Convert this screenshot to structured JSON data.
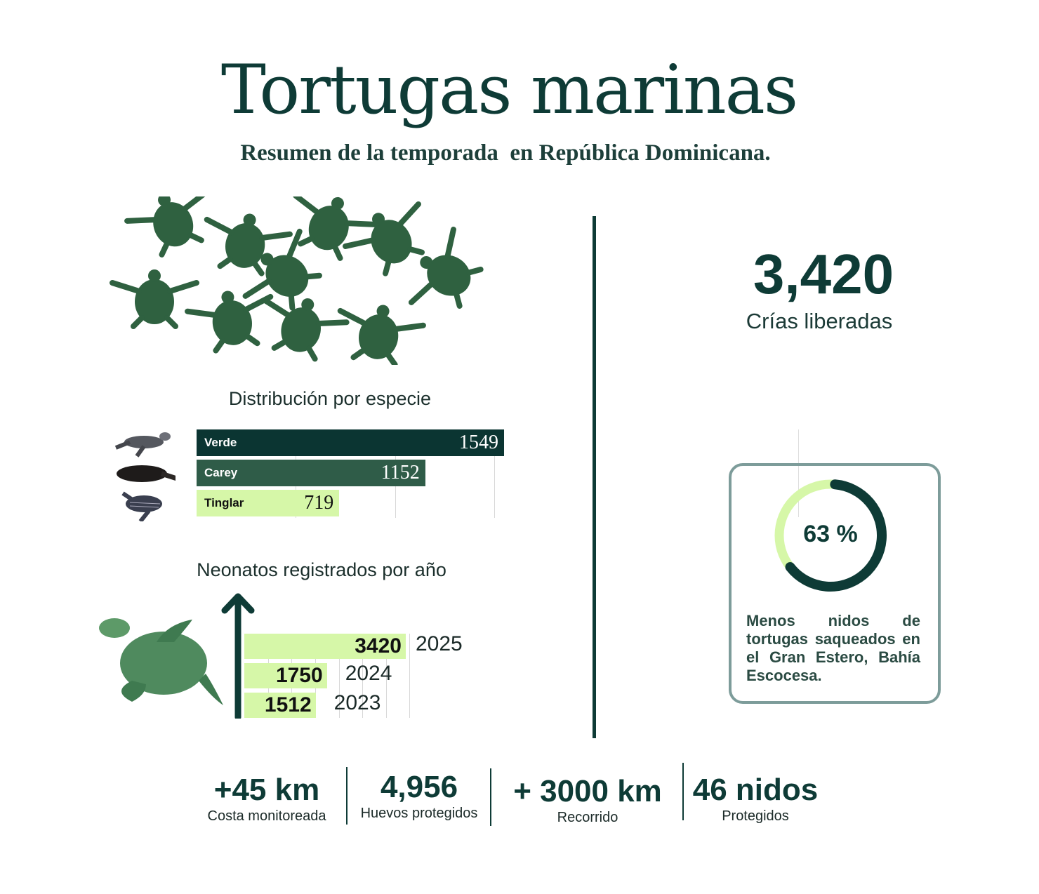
{
  "header": {
    "title": "Tortugas marinas",
    "subtitle": "Resumen de la temporada  en República Dominicana."
  },
  "highlight": {
    "value": "3,420",
    "label": "Crías liberadas"
  },
  "chart_data": [
    {
      "type": "bar",
      "orientation": "horizontal",
      "title": "Distribución por especie",
      "categories": [
        "Verde",
        "Carey",
        "Tinglar"
      ],
      "values": [
        1549,
        1152,
        719
      ],
      "labels": [
        "1549",
        "1152",
        "719"
      ],
      "colors": [
        "#0b3532",
        "#2f5c48",
        "#d6f7a8"
      ],
      "xlim": [
        0,
        1600
      ],
      "grid": true
    },
    {
      "type": "bar",
      "orientation": "horizontal",
      "title": "Neonatos registrados por año",
      "categories": [
        "2025",
        "2024",
        "2023"
      ],
      "values": [
        3420,
        1750,
        1512
      ],
      "labels": [
        "3420",
        "1750",
        "1512"
      ],
      "colors": [
        "#d6f7a8"
      ],
      "xlim": [
        0,
        3500
      ],
      "grid": true
    },
    {
      "type": "pie",
      "style": "donut",
      "values": [
        63,
        37
      ],
      "colors": [
        "#0e3b36",
        "#d6f7a8"
      ],
      "center_label": "63 %",
      "caption": "Menos nidos de tortugas saqueados en el Gran Estero, Bahía Escocesa."
    }
  ],
  "stats": [
    {
      "value": "+45 km",
      "label": "Costa monitoreada"
    },
    {
      "value": "4,956",
      "label": "Huevos protegidos"
    },
    {
      "value": "+ 3000 km",
      "label": "Recorrido"
    },
    {
      "value": "46 nidos",
      "label": "Protegidos"
    }
  ],
  "icons": [
    "turtle-hatchlings-illustration",
    "green-turtle-icon",
    "hawksbill-turtle-icon",
    "leatherback-turtle-icon",
    "sea-turtle-illustration",
    "up-arrow-icon"
  ]
}
